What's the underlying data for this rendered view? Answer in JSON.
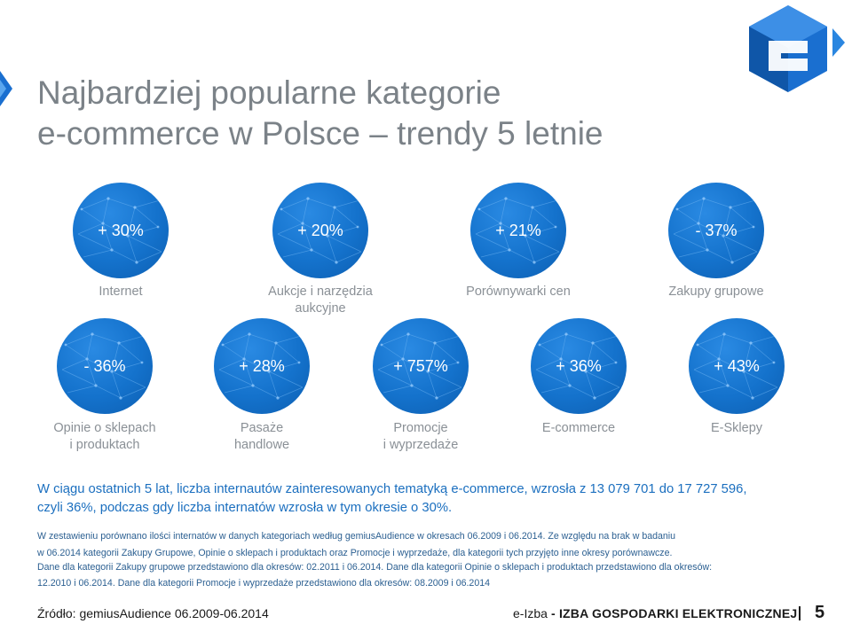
{
  "title": {
    "line1": "Najbardziej popularne kategorie",
    "line2": "e-commerce w Polsce – trendy 5 letnie"
  },
  "colors": {
    "circle": "#1472cc",
    "title": "#7b8288",
    "label": "#8a9096",
    "summary": "#1b6fbf",
    "logo": "#1a6fd0"
  },
  "row1": [
    {
      "value": "+ 30%",
      "label": [
        "Internet"
      ]
    },
    {
      "value": "+ 20%",
      "label": [
        "Aukcje i narzędzia",
        "aukcyjne"
      ]
    },
    {
      "value": "+ 21%",
      "label": [
        "Porównywarki cen"
      ]
    },
    {
      "value": "- 37%",
      "label": [
        "Zakupy grupowe"
      ]
    }
  ],
  "row2": [
    {
      "value": "- 36%",
      "label": [
        "Opinie o sklepach",
        "i produktach"
      ]
    },
    {
      "value": "+ 28%",
      "label": [
        "Pasaże",
        "handlowe"
      ]
    },
    {
      "value": "+ 757%",
      "label": [
        "Promocje",
        "i wyprzedaże"
      ]
    },
    {
      "value": "+ 36%",
      "label": [
        "E-commerce"
      ]
    },
    {
      "value": "+ 43%",
      "label": [
        "E-Sklepy"
      ]
    }
  ],
  "summary": "W ciągu ostatnich 5 lat, liczba internautów zainteresowanych tematyką e-commerce, wzrosła z 13 079 701 do 17 727 596, czyli 36%, podczas gdy liczba internatów wzrosła w tym okresie o 30%.",
  "notes": [
    "W zestawieniu porównano ilości internatów w danych kategoriach według gemiusAudience w okresach 06.2009 i 06.2014. Ze względu na brak w badaniu",
    "w 06.2014 kategorii Zakupy Grupowe, Opinie o sklepach i produktach oraz Promocje i wyprzedaże, dla kategorii tych przyjęto inne okresy porównawcze.",
    "Dane dla kategorii Zakupy grupowe przedstawiono dla okresów: 02.2011 i 06.2014. Dane dla kategorii Opinie o sklepach i produktach przedstawiono dla okresów:",
    "12.2010 i 06.2014. Dane dla kategorii Promocje i wyprzedaże przedstawiono dla okresów: 08.2009 i 06.2014"
  ],
  "footer": {
    "source": "Źródło: gemiusAudience 06.2009-06.2014",
    "brand_prefix": "e-Izba",
    "brand_name": " - IZBA GOSPODARKI ELEKTRONICZNEJ",
    "page": "5"
  }
}
